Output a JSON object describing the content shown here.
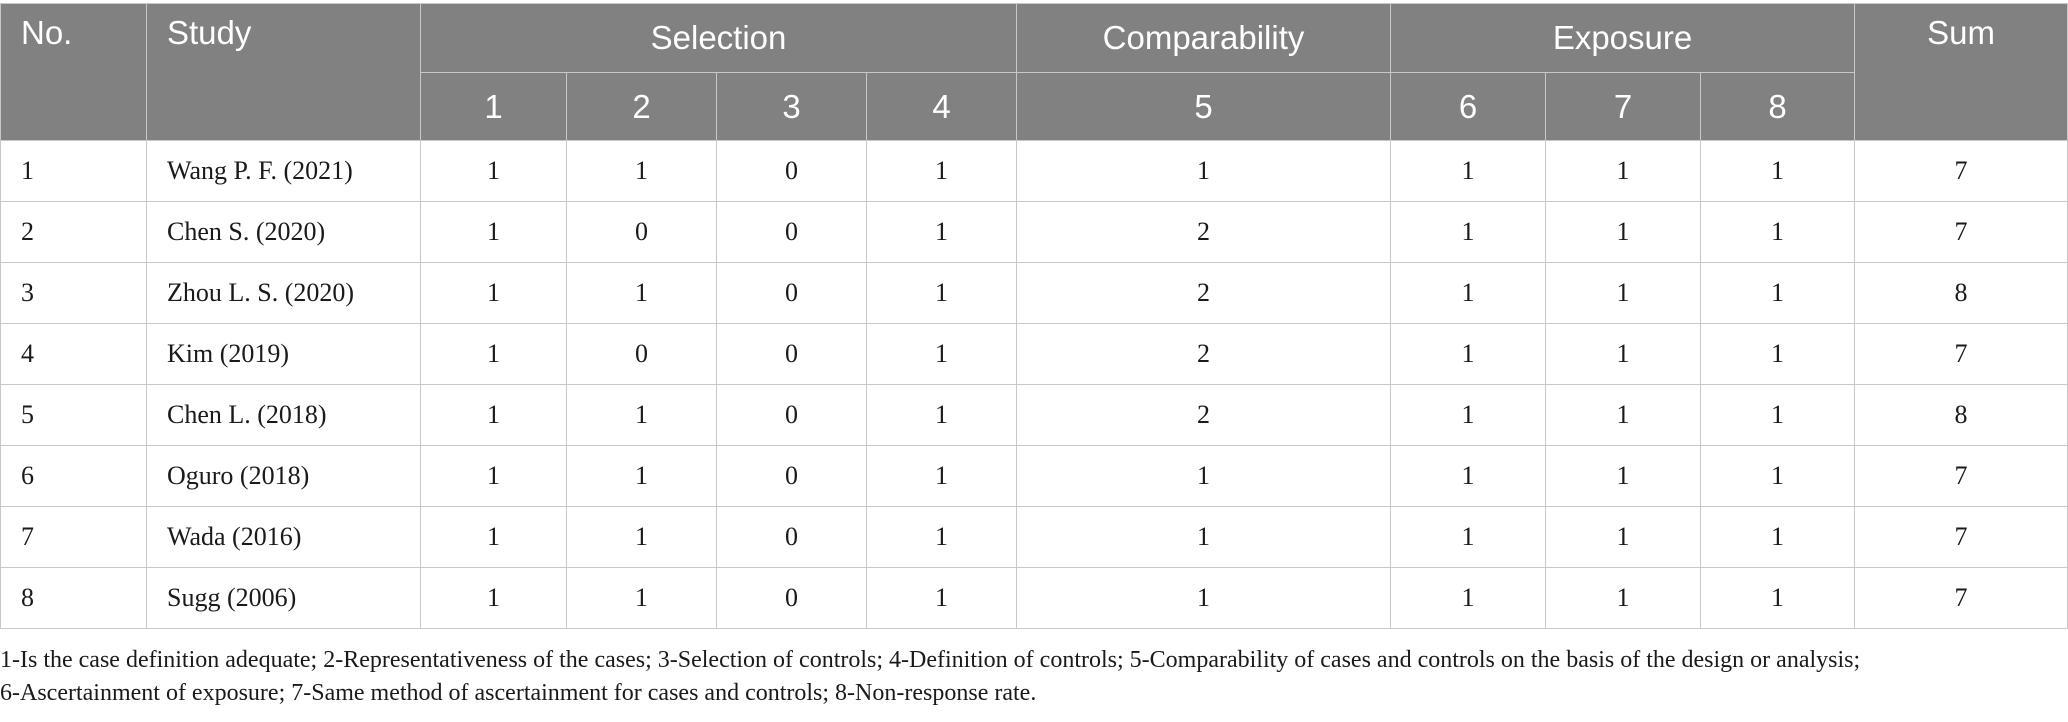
{
  "table": {
    "headers": {
      "no": "No.",
      "study": "Study",
      "selection": "Selection",
      "comparability": "Comparability",
      "exposure": "Exposure",
      "sum": "Sum",
      "sub": [
        "1",
        "2",
        "3",
        "4",
        "5",
        "6",
        "7",
        "8"
      ]
    },
    "rows": [
      {
        "no": "1",
        "study": "Wang P. F. (2021)",
        "scores": [
          "1",
          "1",
          "0",
          "1",
          "1",
          "1",
          "1",
          "1"
        ],
        "sum": "7"
      },
      {
        "no": "2",
        "study": "Chen S. (2020)",
        "scores": [
          "1",
          "0",
          "0",
          "1",
          "2",
          "1",
          "1",
          "1"
        ],
        "sum": "7"
      },
      {
        "no": "3",
        "study": "Zhou L. S. (2020)",
        "scores": [
          "1",
          "1",
          "0",
          "1",
          "2",
          "1",
          "1",
          "1"
        ],
        "sum": "8"
      },
      {
        "no": "4",
        "study": "Kim (2019)",
        "scores": [
          "1",
          "0",
          "0",
          "1",
          "2",
          "1",
          "1",
          "1"
        ],
        "sum": "7"
      },
      {
        "no": "5",
        "study": "Chen L. (2018)",
        "scores": [
          "1",
          "1",
          "0",
          "1",
          "2",
          "1",
          "1",
          "1"
        ],
        "sum": "8"
      },
      {
        "no": "6",
        "study": "Oguro (2018)",
        "scores": [
          "1",
          "1",
          "0",
          "1",
          "1",
          "1",
          "1",
          "1"
        ],
        "sum": "7"
      },
      {
        "no": "7",
        "study": "Wada (2016)",
        "scores": [
          "1",
          "1",
          "0",
          "1",
          "1",
          "1",
          "1",
          "1"
        ],
        "sum": "7"
      },
      {
        "no": "8",
        "study": "Sugg (2006)",
        "scores": [
          "1",
          "1",
          "0",
          "1",
          "1",
          "1",
          "1",
          "1"
        ],
        "sum": "7"
      }
    ],
    "colors": {
      "header_bg": "#818181",
      "header_text": "#ffffff",
      "grid": "#c8c8c8"
    }
  },
  "footnote": {
    "line1": "1-Is the case definition adequate; 2-Representativeness of the cases; 3-Selection of controls; 4-Definition of controls; 5-Comparability of cases and controls on the basis of the design or analysis;",
    "line2": "6-Ascertainment of exposure; 7-Same method of ascertainment for cases and controls; 8-Non-response rate."
  }
}
